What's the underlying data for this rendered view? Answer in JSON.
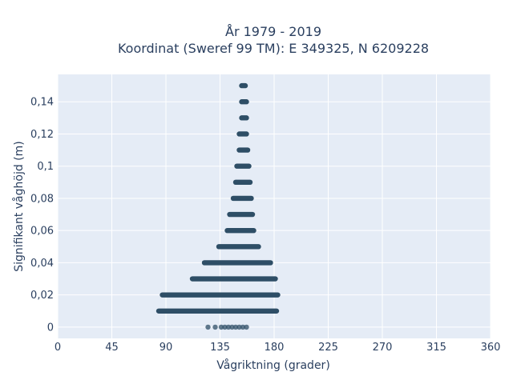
{
  "chart_data": {
    "type": "scatter",
    "title_line1": "År 1979 - 2019",
    "title_line2": "Koordinat (Sweref 99 TM): E 349325, N 6209228",
    "xlabel": "Vågriktning (grader)",
    "ylabel": "Signifikant våghöjd (m)",
    "xlim": [
      0,
      360
    ],
    "ylim": [
      -0.007,
      0.157
    ],
    "x_ticks": [
      0,
      45,
      90,
      135,
      180,
      225,
      270,
      315,
      360
    ],
    "x_tick_labels": [
      "0",
      "45",
      "90",
      "135",
      "180",
      "225",
      "270",
      "315",
      "360"
    ],
    "y_ticks": [
      0,
      0.02,
      0.04,
      0.06,
      0.08,
      0.1,
      0.12,
      0.14
    ],
    "y_tick_labels": [
      "0",
      "0,02",
      "0,04",
      "0,06",
      "0,08",
      "0,1",
      "0,12",
      "0,14"
    ],
    "grid": true,
    "marker_color": "#2e4e66",
    "background_color": "#e5ecf6",
    "bands": [
      {
        "y": 0.0,
        "x_min": 125,
        "x_max": 157,
        "sparse": true
      },
      {
        "y": 0.01,
        "x_min": 84,
        "x_max": 182
      },
      {
        "y": 0.02,
        "x_min": 87,
        "x_max": 183
      },
      {
        "y": 0.03,
        "x_min": 112,
        "x_max": 181
      },
      {
        "y": 0.04,
        "x_min": 122,
        "x_max": 177
      },
      {
        "y": 0.05,
        "x_min": 134,
        "x_max": 167
      },
      {
        "y": 0.06,
        "x_min": 141,
        "x_max": 163
      },
      {
        "y": 0.07,
        "x_min": 143,
        "x_max": 162
      },
      {
        "y": 0.08,
        "x_min": 146,
        "x_max": 161
      },
      {
        "y": 0.09,
        "x_min": 148,
        "x_max": 160
      },
      {
        "y": 0.1,
        "x_min": 149,
        "x_max": 159
      },
      {
        "y": 0.11,
        "x_min": 151,
        "x_max": 158
      },
      {
        "y": 0.12,
        "x_min": 151,
        "x_max": 157
      },
      {
        "y": 0.13,
        "x_min": 153,
        "x_max": 157
      },
      {
        "y": 0.14,
        "x_min": 153,
        "x_max": 157
      },
      {
        "y": 0.15,
        "x_min": 153,
        "x_max": 156
      }
    ],
    "sparse_points_y0": [
      125,
      131,
      136,
      139,
      142,
      145,
      148,
      151,
      154,
      157
    ]
  }
}
